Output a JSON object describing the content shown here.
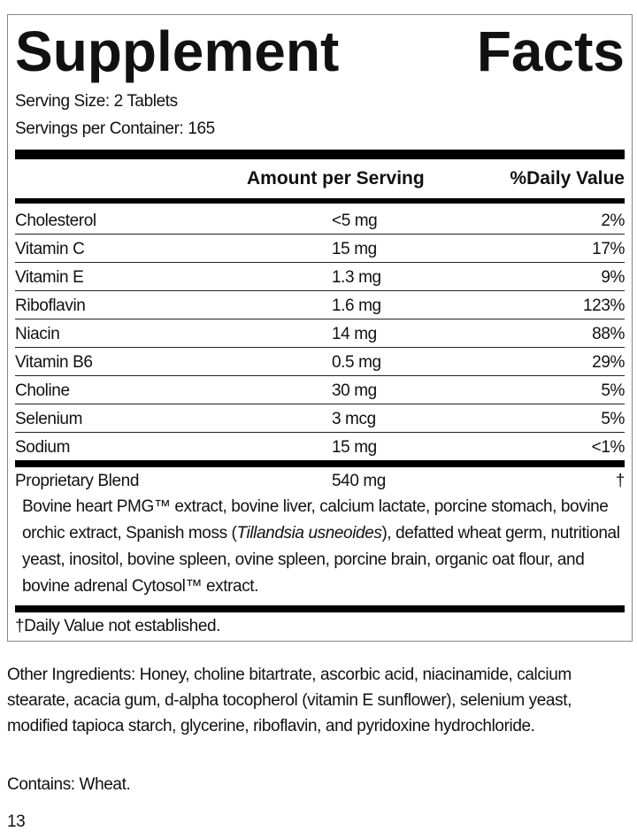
{
  "header": {
    "title": "Supplement Facts"
  },
  "serving": {
    "size": "Serving Size: 2 Tablets",
    "per_container": "Servings per Container: 165"
  },
  "table": {
    "columns": [
      "Amount per Serving",
      "%Daily Value"
    ],
    "rows": [
      [
        "Cholesterol",
        "<5 mg",
        "2%"
      ],
      [
        "Vitamin C",
        "15 mg",
        "17%"
      ],
      [
        "Vitamin E",
        "1.3 mg",
        "9%"
      ],
      [
        "Riboflavin",
        "1.6 mg",
        "123%"
      ],
      [
        "Niacin",
        "14 mg",
        "88%"
      ],
      [
        "Vitamin B6",
        "0.5 mg",
        "29%"
      ],
      [
        "Choline",
        "30 mg",
        "5%"
      ],
      [
        "Selenium",
        "3 mcg",
        "5%"
      ],
      [
        "Sodium",
        "15 mg",
        "<1%"
      ]
    ]
  },
  "blend": {
    "name": "Proprietary Blend",
    "amount": "540 mg",
    "daily_value": "†",
    "description": [
      "Bovine heart PMG™ extract, bovine liver, calcium lactate, porcine stomach, bovine orchic extract, Spanish moss (",
      "Tillandsia usneoides",
      "), defatted wheat germ, nutritional yeast, inositol, bovine spleen, ovine spleen, porcine brain, organic oat flour, and bovine adrenal Cytosol™ extract."
    ]
  },
  "footnote": "†Daily Value not established.",
  "other_ingredients": "Other Ingredients: Honey, choline bitartrate, ascorbic acid, niacinamide, calcium stearate, acacia gum, d-alpha tocopherol (vitamin E sunflower), selenium yeast, modified tapioca starch, glycerine, riboflavin, and pyridoxine hydrochloride.",
  "contains": "Contains: Wheat.",
  "page_number": "13"
}
